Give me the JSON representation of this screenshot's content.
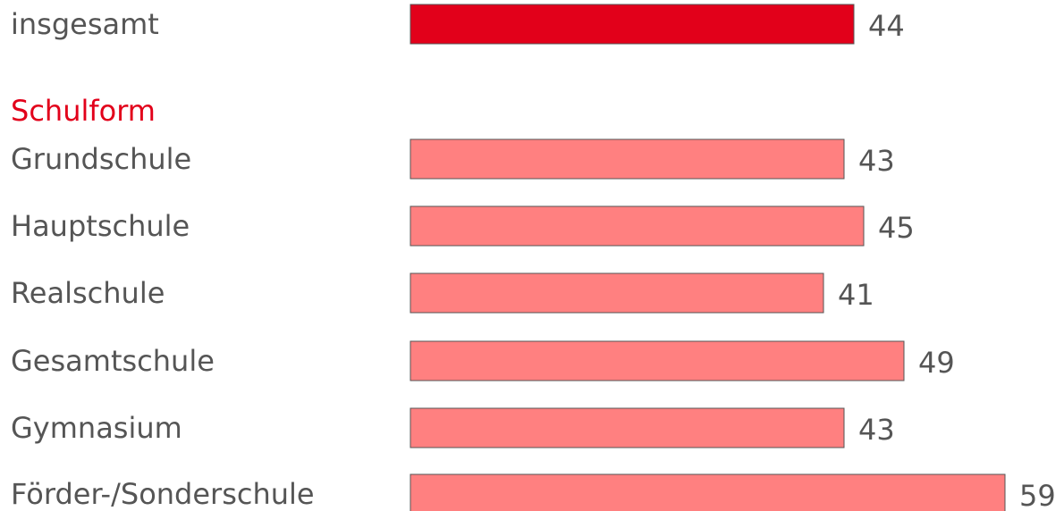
{
  "chart_data": {
    "type": "bar",
    "orientation": "horizontal",
    "section_title": "Schulform",
    "categories": [
      "insgesamt",
      "Grundschule",
      "Hauptschule",
      "Realschule",
      "Gesamtschule",
      "Gymnasium",
      "Förder-/Sonderschule"
    ],
    "values": [
      44,
      43,
      45,
      41,
      49,
      43,
      59
    ],
    "colors": {
      "total": "#e2001a",
      "category": "#ff8080",
      "section_title": "#e2001a",
      "text": "#555555",
      "bar_outline": "#555555"
    },
    "xlim": [
      0,
      59
    ],
    "grid": false,
    "legend": "none"
  }
}
